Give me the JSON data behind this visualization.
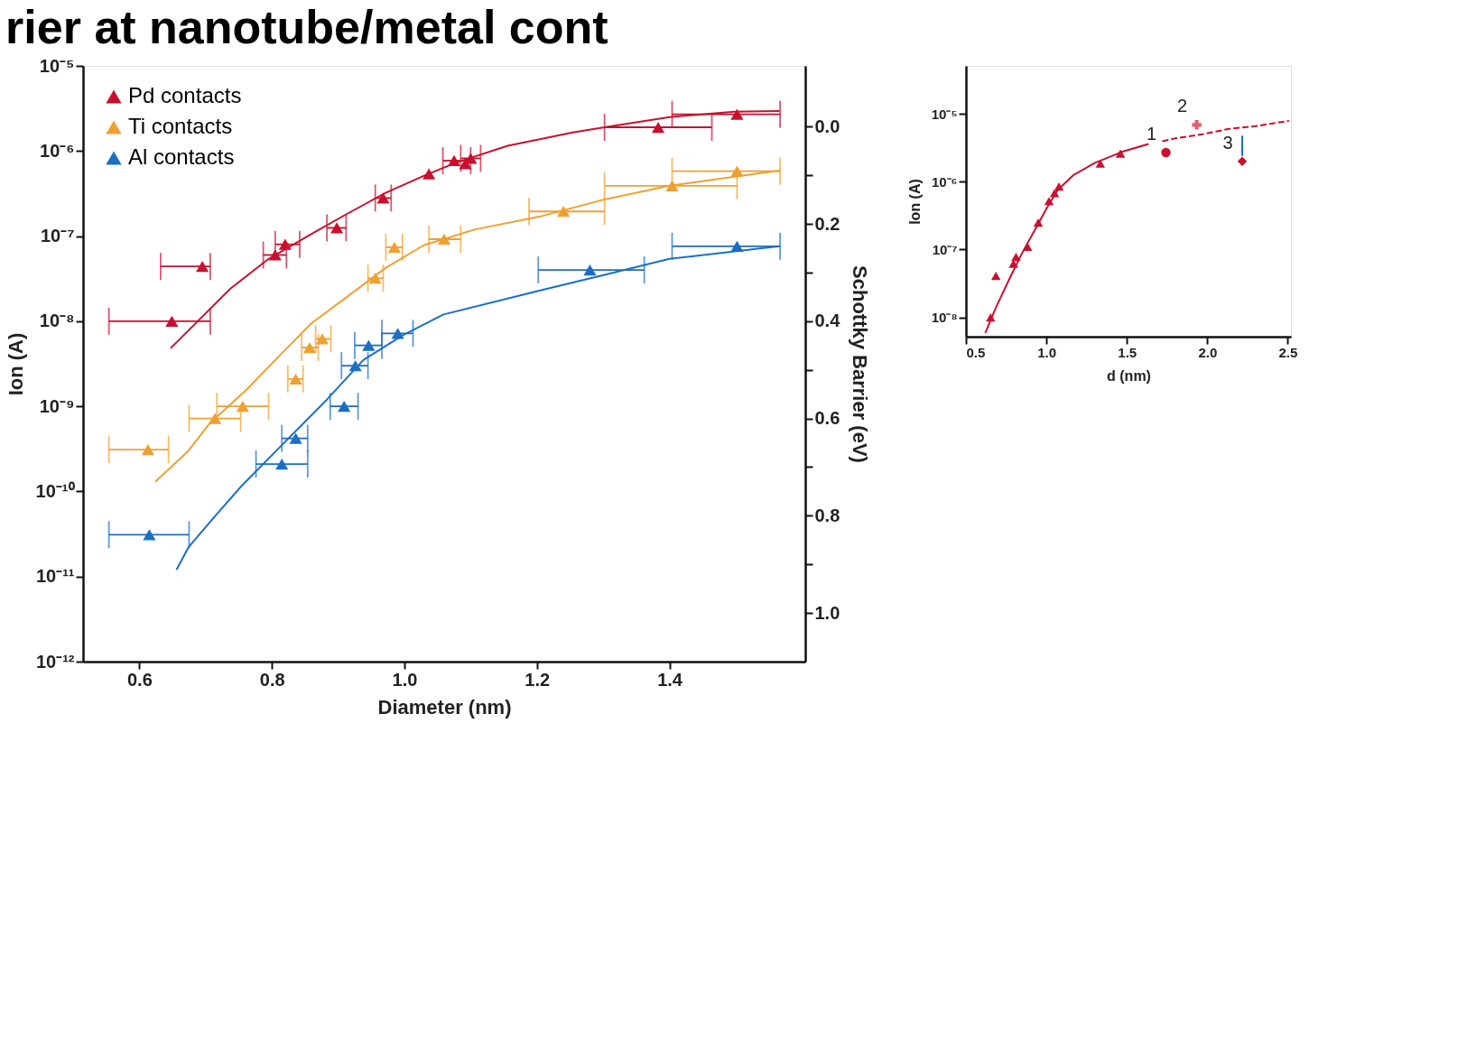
{
  "chart_data": [
    {
      "type": "scatter",
      "title": "rier at nanotube/metal cont",
      "xlabel": "Diameter  (nm)",
      "ylabel": "Ion (A)",
      "y2label": "Schottky Barrier (eV)",
      "log": "y",
      "grid": false,
      "legend": "top left",
      "marker": "triangle",
      "xlim": [
        0.515,
        1.605
      ],
      "xticks": [
        {
          "value": 0.6,
          "label": "0.6"
        },
        {
          "value": 0.8,
          "label": "0.8"
        },
        {
          "value": 1.0,
          "label": "1.0"
        },
        {
          "value": 1.2,
          "label": "1.2"
        },
        {
          "value": 1.4,
          "label": "1.4"
        }
      ],
      "ylim": [
        1e-12,
        1e-05
      ],
      "yticks": [
        {
          "value": 1e-12,
          "label": "10⁻¹²"
        },
        {
          "value": 1e-11,
          "label": "10⁻¹¹"
        },
        {
          "value": 1e-10,
          "label": "10⁻¹⁰"
        },
        {
          "value": 1e-09,
          "label": "10⁻⁹"
        },
        {
          "value": 1e-08,
          "label": "10⁻⁸"
        },
        {
          "value": 1e-07,
          "label": "10⁻⁷"
        },
        {
          "value": 1e-06,
          "label": "10⁻⁶"
        },
        {
          "value": 1e-05,
          "label": "10⁻⁵"
        }
      ],
      "y2lim": [
        1.1,
        -0.125
      ],
      "y2ticks": [
        {
          "value": 0,
          "label": "0.0"
        },
        {
          "value": 0.1,
          "label": null
        },
        {
          "value": 0.2,
          "label": "0.2"
        },
        {
          "value": 0.3,
          "label": null
        },
        {
          "value": 0.4,
          "label": "0.4"
        },
        {
          "value": 0.5,
          "label": null
        },
        {
          "value": 0.6,
          "label": "0.6"
        },
        {
          "value": 0.7,
          "label": null
        },
        {
          "value": 0.8,
          "label": "0.8"
        },
        {
          "value": 0.9,
          "label": null
        },
        {
          "value": 1.0,
          "label": "1.0"
        }
      ],
      "series": [
        {
          "name": "Pd contacts",
          "color": "#c8102e",
          "x": [
            0.649,
            0.695,
            0.805,
            0.82,
            0.898,
            0.968,
            1.037,
            1.075,
            1.092,
            1.1,
            1.383,
            1.502
          ],
          "values": [
            1e-08,
            4.4e-08,
            6e-08,
            8e-08,
            1.25e-07,
            2.8e-07,
            5.4e-07,
            7.7e-07,
            7.1e-07,
            8.2e-07,
            1.9e-06,
            2.7e-06
          ],
          "xerrors": [
            [
              0.554,
              0.707
            ],
            [
              0.632,
              0.707
            ],
            [
              0.787,
              0.822
            ],
            [
              0.805,
              0.842
            ],
            [
              0.883,
              0.912
            ],
            [
              0.956,
              0.98
            ],
            null,
            [
              1.058,
              1.1
            ],
            null,
            [
              1.085,
              1.115
            ],
            [
              1.302,
              1.464
            ],
            [
              1.404,
              1.567
            ]
          ]
        },
        {
          "name": "Ti contacts",
          "color": "#f0a030",
          "x": [
            0.613,
            0.714,
            0.756,
            0.836,
            0.857,
            0.876,
            0.956,
            0.985,
            1.06,
            1.24,
            1.404,
            1.502
          ],
          "values": [
            3.1e-10,
            7.2e-10,
            1e-09,
            2.1e-09,
            4.9e-09,
            6.2e-09,
            3.2e-08,
            7.4e-08,
            9.2e-08,
            1.95e-07,
            3.9e-07,
            5.8e-07
          ],
          "xerrors": [
            [
              0.554,
              0.644
            ],
            [
              0.675,
              0.753
            ],
            [
              0.717,
              0.795
            ],
            [
              0.824,
              0.847
            ],
            [
              0.845,
              0.87
            ],
            [
              0.866,
              0.889
            ],
            [
              0.945,
              0.968
            ],
            [
              0.972,
              0.997
            ],
            [
              1.037,
              1.085
            ],
            [
              1.188,
              1.302
            ],
            [
              1.302,
              1.502
            ],
            [
              1.404,
              1.567
            ]
          ]
        },
        {
          "name": "Al contacts",
          "color": "#1a6fc4",
          "x": [
            0.615,
            0.815,
            0.836,
            0.909,
            0.926,
            0.946,
            0.99,
            1.28,
            1.502
          ],
          "values": [
            3.1e-11,
            2.1e-10,
            4.2e-10,
            1e-09,
            3e-09,
            5.2e-09,
            7.2e-09,
            4e-08,
            7.6e-08
          ],
          "xerrors": [
            [
              0.554,
              0.675
            ],
            [
              0.776,
              0.854
            ],
            [
              0.815,
              0.854
            ],
            [
              0.888,
              0.93
            ],
            [
              0.905,
              0.945
            ],
            [
              0.925,
              0.966
            ],
            [
              0.966,
              1.013
            ],
            [
              1.202,
              1.362
            ],
            [
              1.404,
              1.567
            ]
          ]
        },
        {
          "type": "line",
          "marker": "none",
          "line_style": "solid",
          "color": "#c8102e",
          "x": [
            0.647,
            0.688,
            0.737,
            0.795,
            0.854,
            0.912,
            0.971,
            1.029,
            1.078,
            1.156,
            1.254,
            1.302,
            1.4,
            1.498,
            1.566
          ],
          "values": [
            4.8e-09,
            1e-08,
            2.4e-08,
            5.4e-08,
            1e-07,
            1.8e-07,
            3.2e-07,
            5.1e-07,
            7.3e-07,
            1.15e-06,
            1.65e-06,
            1.9e-06,
            2.5e-06,
            2.9e-06,
            2.95e-06
          ]
        },
        {
          "type": "line",
          "marker": "none",
          "line_style": "solid",
          "color": "#f0a030",
          "x": [
            0.624,
            0.674,
            0.706,
            0.761,
            0.815,
            0.86,
            0.912,
            0.971,
            1.029,
            1.107,
            1.205,
            1.302,
            1.4,
            1.498,
            1.566
          ],
          "values": [
            1.3e-10,
            3e-10,
            6.3e-10,
            1.55e-09,
            4.2e-09,
            9.5e-09,
            1.9e-08,
            4.2e-08,
            7.8e-08,
            1.2e-07,
            1.7e-07,
            2.7e-07,
            3.9e-07,
            5e-07,
            5.9e-07
          ]
        },
        {
          "type": "line",
          "marker": "none",
          "line_style": "solid",
          "color": "#1a6fc4",
          "x": [
            0.656,
            0.674,
            0.71,
            0.756,
            0.815,
            0.883,
            0.938,
            0.997,
            1.059,
            1.205,
            1.302,
            1.4,
            1.566
          ],
          "values": [
            1.2e-11,
            2.2e-11,
            4.7e-11,
            1.2e-10,
            3.5e-10,
            1.2e-09,
            3.5e-09,
            6.8e-09,
            1.2e-08,
            2.3e-08,
            3.5e-08,
            5.4e-08,
            7.6e-08
          ]
        }
      ]
    },
    {
      "type": "scatter",
      "xlabel": "d  (nm)",
      "ylabel": "Ion (A)",
      "log": "y",
      "grid": false,
      "marker": "triangle",
      "xlim": [
        0.5,
        2.52
      ],
      "xticks": [
        {
          "value": 0.5,
          "label": "0.5"
        },
        {
          "value": 1.0,
          "label": "1.0"
        },
        {
          "value": 1.5,
          "label": "1.5"
        },
        {
          "value": 2.0,
          "label": "2.0"
        },
        {
          "value": 2.5,
          "label": "2.5"
        }
      ],
      "ylim": [
        5.2e-09,
        5.1e-05
      ],
      "yticks": [
        {
          "value": 1e-08,
          "label": "10⁻⁸"
        },
        {
          "value": 1e-07,
          "label": "10⁻⁷"
        },
        {
          "value": 1e-06,
          "label": "10⁻⁶"
        },
        {
          "value": 1e-05,
          "label": "10⁻⁵"
        }
      ],
      "annotations": [
        {
          "text": "1",
          "x": 1.743,
          "y": 2.7e-06
        },
        {
          "text": "2",
          "x": 1.934,
          "y": 6.9e-06
        },
        {
          "text": "3",
          "x": 2.217,
          "y": 2e-06
        }
      ],
      "series": [
        {
          "color": "#c8102e",
          "x": [
            0.653,
            0.686,
            0.795,
            0.811,
            0.883,
            0.949,
            1.016,
            1.05,
            1.078,
            1.335,
            1.46
          ],
          "values": [
            1e-08,
            4.1e-08,
            6.2e-08,
            7.8e-08,
            1.1e-07,
            2.5e-07,
            5.2e-07,
            6.8e-07,
            8.5e-07,
            1.85e-06,
            2.6e-06
          ]
        },
        {
          "color": "#c8102e",
          "marker": "circle",
          "x": [
            1.743
          ],
          "values": [
            2.7e-06
          ]
        },
        {
          "color": "#e06070",
          "marker": "cross",
          "x": [
            1.934
          ],
          "values": [
            6.9e-06
          ]
        },
        {
          "color": "#c8102e",
          "marker": "diamond",
          "x": [
            2.217
          ],
          "values": [
            2e-06
          ]
        },
        {
          "type": "line",
          "marker": "none",
          "line_style": "solid",
          "color": "#1a6fc4",
          "x": [
            2.217,
            2.217
          ],
          "values": [
            2.4e-06,
            4.8e-06
          ]
        },
        {
          "type": "line",
          "marker": "none",
          "line_style": "solid",
          "color": "#c8102e",
          "x": [
            0.62,
            0.686,
            0.77,
            0.853,
            0.936,
            1.002,
            1.069,
            1.169,
            1.302,
            1.468,
            1.635
          ],
          "values": [
            5.9e-09,
            1.4e-08,
            3.7e-08,
            9.3e-08,
            2.1e-07,
            4.1e-07,
            7.5e-07,
            1.26e-06,
            1.9e-06,
            2.75e-06,
            3.6e-06
          ]
        },
        {
          "type": "line",
          "marker": "none",
          "line_style": "dashed",
          "color": "#c8102e",
          "x": [
            1.72,
            1.801,
            1.968,
            2.134,
            2.3,
            2.508
          ],
          "values": [
            3.95e-06,
            4.35e-06,
            5e-06,
            6e-06,
            6.6e-06,
            7.9e-06
          ]
        }
      ]
    }
  ]
}
